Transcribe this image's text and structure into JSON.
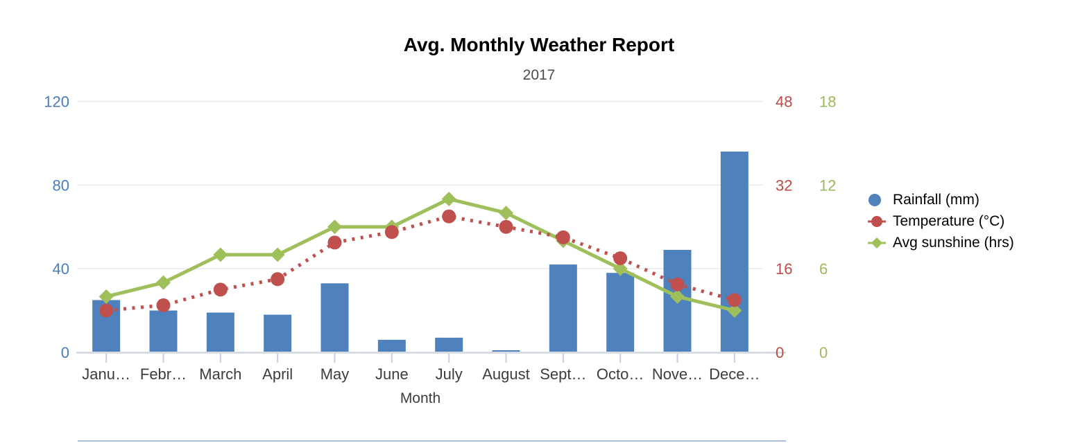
{
  "chart_data": {
    "type": "combo",
    "title": "Avg. Monthly Weather Report",
    "subtitle": "2017",
    "xlabel": "Month",
    "categories": [
      "January",
      "February",
      "March",
      "April",
      "May",
      "June",
      "July",
      "August",
      "September",
      "October",
      "November",
      "December"
    ],
    "category_labels_shown": [
      "Janu…",
      "Febr…",
      "March",
      "April",
      "May",
      "June",
      "July",
      "August",
      "Sept…",
      "Octo…",
      "Nove…",
      "Dece…"
    ],
    "series": [
      {
        "name": "Rainfall (mm)",
        "type": "bar",
        "axis": "rainfall",
        "color": "#4f81bd",
        "legend_marker": "circle",
        "values": [
          25,
          20,
          19,
          18,
          33,
          6,
          7,
          1,
          42,
          38,
          49,
          96
        ]
      },
      {
        "name": "Temperature (°C)",
        "type": "line",
        "line_style": "dotted",
        "marker": "circle",
        "axis": "temperature",
        "color": "#c0504d",
        "legend_marker": "line-circle",
        "values": [
          8,
          9,
          12,
          14,
          21,
          23,
          26,
          24,
          22,
          18,
          13,
          10
        ]
      },
      {
        "name": "Avg sunshine (hrs)",
        "type": "line",
        "line_style": "solid",
        "marker": "diamond",
        "axis": "sunshine",
        "color": "#9ebf5a",
        "legend_marker": "line-diamond",
        "values": [
          4,
          5,
          7,
          7,
          9,
          9,
          11,
          10,
          8,
          6,
          4,
          3
        ]
      }
    ],
    "axes": {
      "rainfall": {
        "position": "left",
        "range": [
          0,
          120
        ],
        "ticks": [
          0,
          40,
          80,
          120
        ],
        "label_color": "#4a7ebb"
      },
      "temperature": {
        "position": "right-inner",
        "range": [
          0,
          48
        ],
        "ticks": [
          0,
          16,
          32,
          48
        ],
        "label_color": "#bf4a47"
      },
      "sunshine": {
        "position": "right-outer",
        "range": [
          0,
          18
        ],
        "ticks": [
          0,
          6,
          12,
          18
        ],
        "label_color": "#9cba59"
      }
    },
    "grid": true,
    "legend_position": "right",
    "x_tick_label_color": "#3d3d3d"
  }
}
